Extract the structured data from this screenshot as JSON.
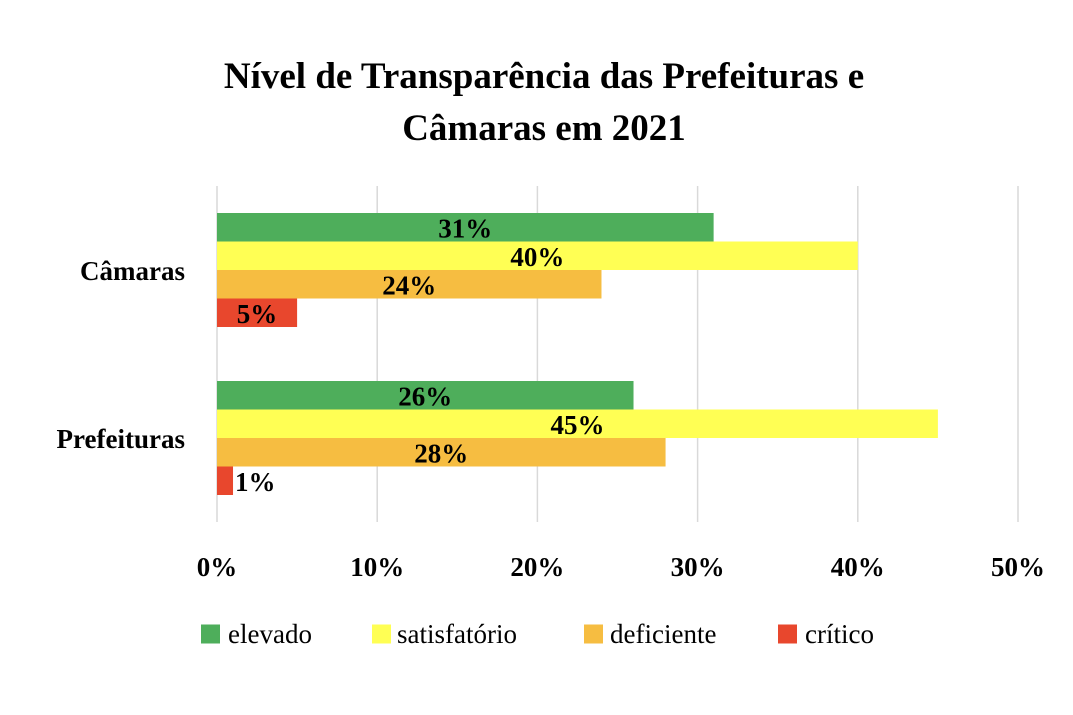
{
  "chart_data": {
    "type": "bar",
    "orientation": "horizontal",
    "title": "Nível de Transparência das Prefeituras e Câmaras em 2021",
    "title_lines": [
      "Nível de Transparência das Prefeituras e",
      "Câmaras em 2021"
    ],
    "categories": [
      "Câmaras",
      "Prefeituras"
    ],
    "series": [
      {
        "name": "elevado",
        "color": "#4eae5b",
        "values": [
          31,
          26
        ],
        "labels": [
          "31%",
          "26%"
        ]
      },
      {
        "name": "satisfatório",
        "color": "#ffff54",
        "values": [
          40,
          45
        ],
        "labels": [
          "40%",
          "45%"
        ]
      },
      {
        "name": "deficiente",
        "color": "#f6bd41",
        "values": [
          24,
          28
        ],
        "labels": [
          "24%",
          "28%"
        ]
      },
      {
        "name": "crítico",
        "color": "#e8472d",
        "values": [
          5,
          1
        ],
        "labels": [
          "5%",
          "1%"
        ]
      }
    ],
    "xlim": [
      0,
      50
    ],
    "x_ticks": [
      0,
      10,
      20,
      30,
      40,
      50
    ],
    "x_tick_labels": [
      "0%",
      "10%",
      "20%",
      "30%",
      "40%",
      "50%"
    ],
    "xlabel": "",
    "ylabel": "",
    "grid": true,
    "legend_position": "bottom"
  }
}
